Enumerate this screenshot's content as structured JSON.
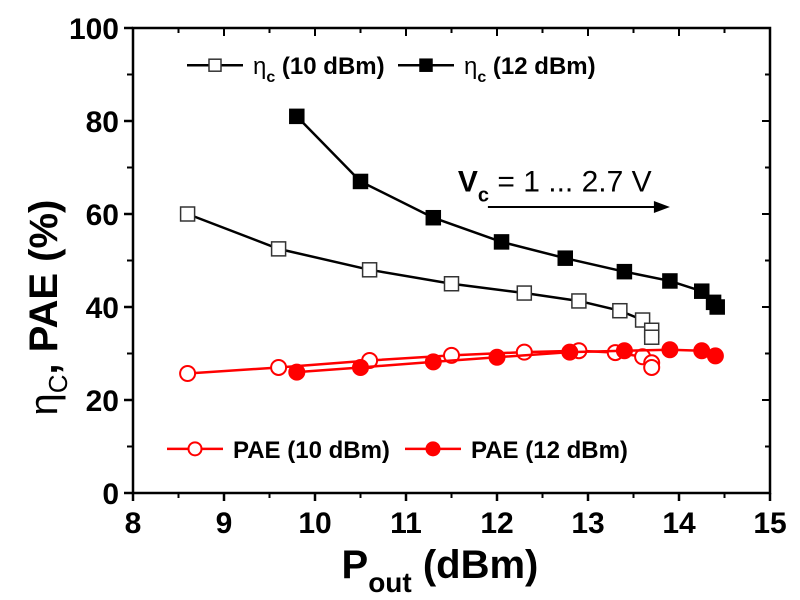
{
  "chart_data": {
    "type": "line",
    "title": "",
    "xlabel": "P",
    "xlabel_sub": "out",
    "xlabel_unit": "(dBm)",
    "ylabel_eta": "η",
    "ylabel_eta_sub": "C",
    "ylabel_rest": ", PAE (%)",
    "xlim": [
      8,
      15
    ],
    "ylim": [
      0,
      100
    ],
    "xticks": [
      8,
      9,
      10,
      11,
      12,
      13,
      14,
      15
    ],
    "xtick_labels": [
      "8",
      "9",
      "10",
      "11",
      "12",
      "13",
      "14",
      "15"
    ],
    "yticks": [
      0,
      20,
      40,
      60,
      80,
      100
    ],
    "ytick_labels": [
      "0",
      "20",
      "40",
      "60",
      "80",
      "100"
    ],
    "grid": false,
    "annotation": {
      "text_main": "V",
      "text_sub": "c",
      "text_rest": " = 1 ... 2.7 V",
      "arrow_from": [
        11.9,
        61.5
      ],
      "arrow_to": [
        13.9,
        61.5
      ],
      "text_at": [
        11.9,
        67
      ]
    },
    "legends": [
      {
        "placement": "top",
        "entries": [
          {
            "label_main": "η",
            "label_sub": "c",
            "label_rest": " (10 dBm)",
            "series": 0
          },
          {
            "label_main": "η",
            "label_sub": "c",
            "label_rest": " (12 dBm)",
            "series": 1
          }
        ]
      },
      {
        "placement": "bottom",
        "entries": [
          {
            "label_main": "PAE (10 dBm)",
            "label_sub": "",
            "label_rest": "",
            "series": 2
          },
          {
            "label_main": "PAE (12 dBm)",
            "label_sub": "",
            "label_rest": "",
            "series": 3
          }
        ]
      }
    ],
    "series": [
      {
        "name": "ηc (10 dBm)",
        "color": "#000000",
        "marker": "square",
        "filled": false,
        "x": [
          8.6,
          9.6,
          10.6,
          11.5,
          12.3,
          12.9,
          13.35,
          13.6,
          13.7,
          13.7
        ],
        "y": [
          60,
          52.5,
          48,
          45,
          43,
          41.3,
          39.2,
          37.2,
          35,
          33.5
        ]
      },
      {
        "name": "ηc (12 dBm)",
        "color": "#000000",
        "marker": "square",
        "filled": true,
        "x": [
          9.8,
          10.5,
          11.3,
          12.05,
          12.75,
          13.4,
          13.9,
          14.25,
          14.38,
          14.42
        ],
        "y": [
          81,
          67,
          59.2,
          54,
          50.5,
          47.6,
          45.6,
          43.4,
          41,
          40
        ]
      },
      {
        "name": "PAE (10 dBm)",
        "color": "#ff0000",
        "marker": "circle",
        "filled": false,
        "x": [
          8.6,
          9.6,
          10.6,
          11.5,
          12.3,
          12.9,
          13.3,
          13.6,
          13.7,
          13.7
        ],
        "y": [
          25.7,
          27,
          28.5,
          29.6,
          30.3,
          30.6,
          30.2,
          29.3,
          28,
          27
        ]
      },
      {
        "name": "PAE (12 dBm)",
        "color": "#ff0000",
        "marker": "circle",
        "filled": true,
        "x": [
          9.8,
          10.5,
          11.3,
          12.0,
          12.8,
          13.4,
          13.9,
          14.25,
          14.4
        ],
        "y": [
          26,
          27,
          28.2,
          29.2,
          30.3,
          30.6,
          30.8,
          30.6,
          29.5
        ]
      }
    ]
  }
}
